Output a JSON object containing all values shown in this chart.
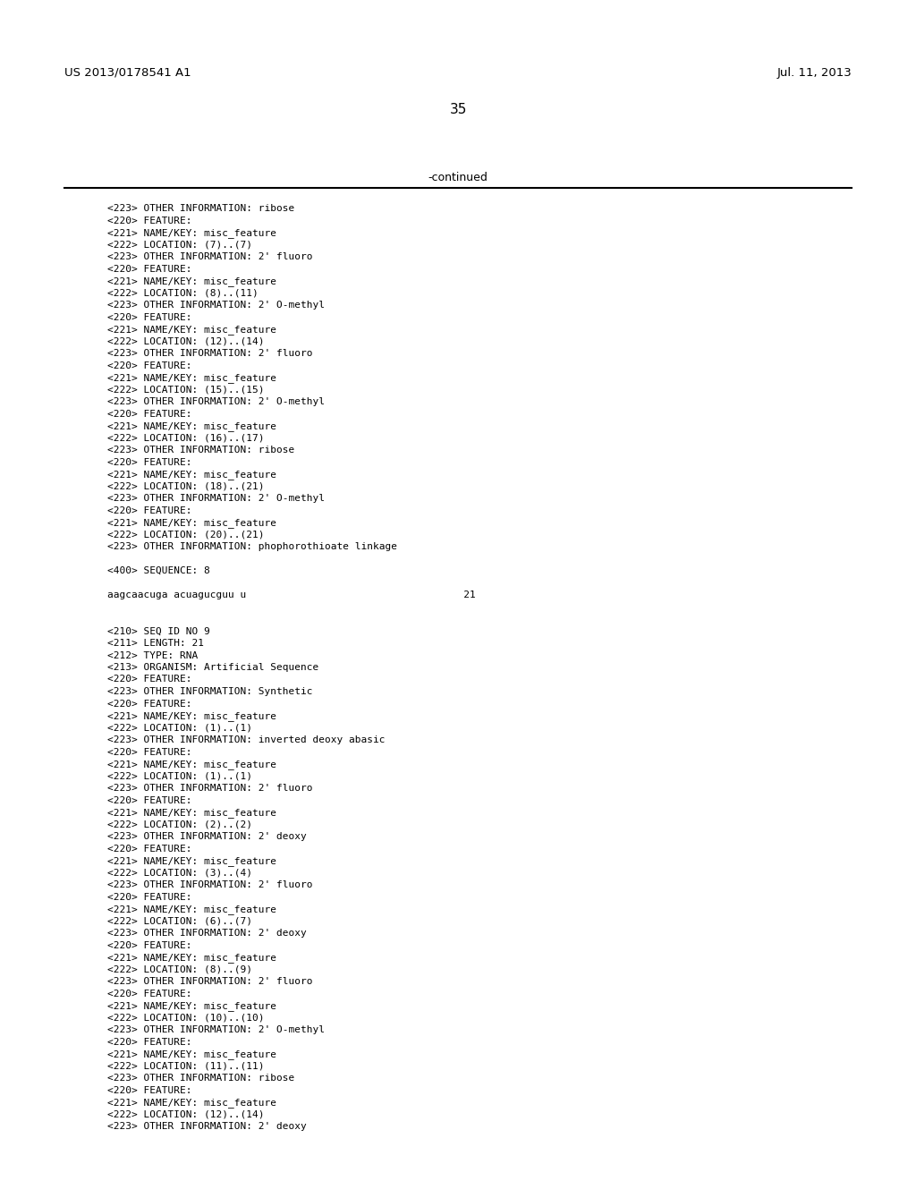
{
  "header_left": "US 2013/0178541 A1",
  "header_right": "Jul. 11, 2013",
  "page_number": "35",
  "continued_text": "-continued",
  "background_color": "#ffffff",
  "text_color": "#000000",
  "line_color": "#000000",
  "header_fontsize": 9.5,
  "body_fontsize": 8.0,
  "page_num_fontsize": 11,
  "continued_fontsize": 9,
  "lines": [
    "<223> OTHER INFORMATION: ribose",
    "<220> FEATURE:",
    "<221> NAME/KEY: misc_feature",
    "<222> LOCATION: (7)..(7)",
    "<223> OTHER INFORMATION: 2' fluoro",
    "<220> FEATURE:",
    "<221> NAME/KEY: misc_feature",
    "<222> LOCATION: (8)..(11)",
    "<223> OTHER INFORMATION: 2' O-methyl",
    "<220> FEATURE:",
    "<221> NAME/KEY: misc_feature",
    "<222> LOCATION: (12)..(14)",
    "<223> OTHER INFORMATION: 2' fluoro",
    "<220> FEATURE:",
    "<221> NAME/KEY: misc_feature",
    "<222> LOCATION: (15)..(15)",
    "<223> OTHER INFORMATION: 2' O-methyl",
    "<220> FEATURE:",
    "<221> NAME/KEY: misc_feature",
    "<222> LOCATION: (16)..(17)",
    "<223> OTHER INFORMATION: ribose",
    "<220> FEATURE:",
    "<221> NAME/KEY: misc_feature",
    "<222> LOCATION: (18)..(21)",
    "<223> OTHER INFORMATION: 2' O-methyl",
    "<220> FEATURE:",
    "<221> NAME/KEY: misc_feature",
    "<222> LOCATION: (20)..(21)",
    "<223> OTHER INFORMATION: phophorothioate linkage",
    "",
    "<400> SEQUENCE: 8",
    "",
    "aagcaacuga acuagucguu u                                    21",
    "",
    "",
    "<210> SEQ ID NO 9",
    "<211> LENGTH: 21",
    "<212> TYPE: RNA",
    "<213> ORGANISM: Artificial Sequence",
    "<220> FEATURE:",
    "<223> OTHER INFORMATION: Synthetic",
    "<220> FEATURE:",
    "<221> NAME/KEY: misc_feature",
    "<222> LOCATION: (1)..(1)",
    "<223> OTHER INFORMATION: inverted deoxy abasic",
    "<220> FEATURE:",
    "<221> NAME/KEY: misc_feature",
    "<222> LOCATION: (1)..(1)",
    "<223> OTHER INFORMATION: 2' fluoro",
    "<220> FEATURE:",
    "<221> NAME/KEY: misc_feature",
    "<222> LOCATION: (2)..(2)",
    "<223> OTHER INFORMATION: 2' deoxy",
    "<220> FEATURE:",
    "<221> NAME/KEY: misc_feature",
    "<222> LOCATION: (3)..(4)",
    "<223> OTHER INFORMATION: 2' fluoro",
    "<220> FEATURE:",
    "<221> NAME/KEY: misc_feature",
    "<222> LOCATION: (6)..(7)",
    "<223> OTHER INFORMATION: 2' deoxy",
    "<220> FEATURE:",
    "<221> NAME/KEY: misc_feature",
    "<222> LOCATION: (8)..(9)",
    "<223> OTHER INFORMATION: 2' fluoro",
    "<220> FEATURE:",
    "<221> NAME/KEY: misc_feature",
    "<222> LOCATION: (10)..(10)",
    "<223> OTHER INFORMATION: 2' O-methyl",
    "<220> FEATURE:",
    "<221> NAME/KEY: misc_feature",
    "<222> LOCATION: (11)..(11)",
    "<223> OTHER INFORMATION: ribose",
    "<220> FEATURE:",
    "<221> NAME/KEY: misc_feature",
    "<222> LOCATION: (12)..(14)",
    "<223> OTHER INFORMATION: 2' deoxy"
  ]
}
